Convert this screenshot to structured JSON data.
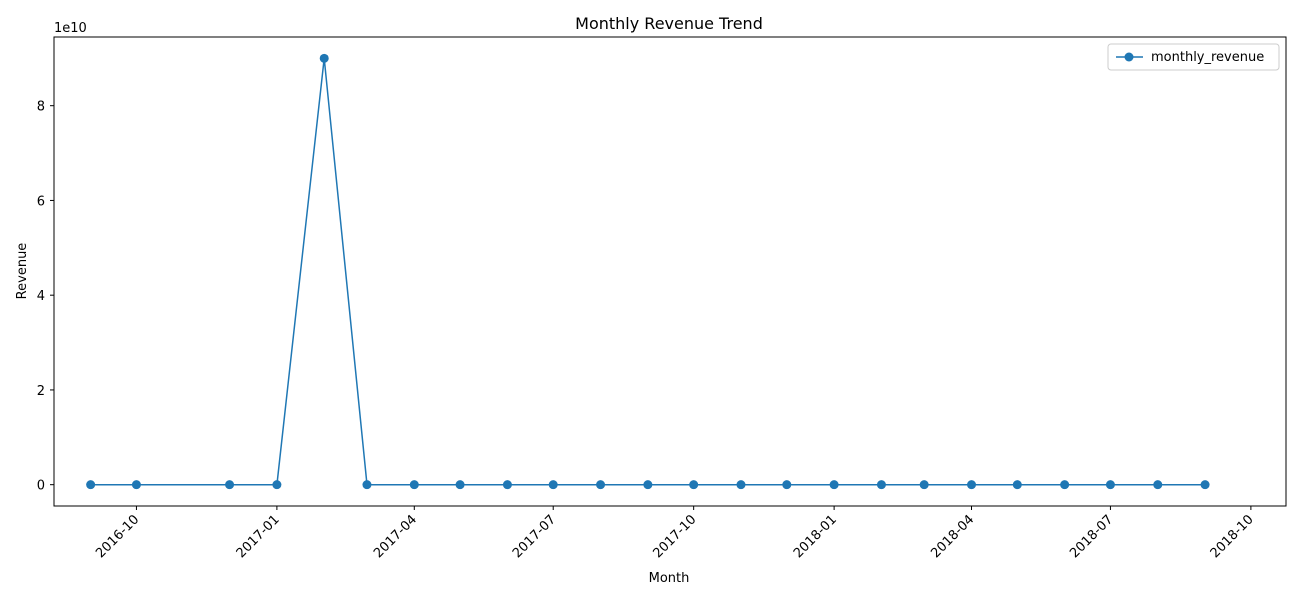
{
  "chart_data": {
    "type": "line",
    "title": "Monthly Revenue Trend",
    "xlabel": "Month",
    "ylabel": "Revenue",
    "y_offset_label": "1e10",
    "x": [
      "2016-09-01",
      "2016-10-01",
      "2016-12-01",
      "2017-01-01",
      "2017-02-01",
      "2017-03-01",
      "2017-04-01",
      "2017-05-01",
      "2017-06-01",
      "2017-07-01",
      "2017-08-01",
      "2017-09-01",
      "2017-10-01",
      "2017-11-01",
      "2017-12-01",
      "2018-01-01",
      "2018-02-01",
      "2018-03-01",
      "2018-04-01",
      "2018-05-01",
      "2018-06-01",
      "2018-07-01",
      "2018-08-01",
      "2018-09-01"
    ],
    "series": [
      {
        "name": "monthly_revenue",
        "color": "#1f77b4",
        "marker": "circle",
        "values": [
          0,
          0,
          0,
          0,
          90000000000.0,
          0,
          0,
          0,
          0,
          0,
          0,
          0,
          0,
          0,
          0,
          0,
          0,
          0,
          0,
          0,
          0,
          0,
          0,
          0
        ]
      }
    ],
    "xlim": [
      "2016-08-08",
      "2018-10-24"
    ],
    "ylim": [
      -4500000000.0,
      94500000000.0
    ],
    "x_ticks": [
      "2016-10-01",
      "2017-01-01",
      "2017-04-01",
      "2017-07-01",
      "2017-10-01",
      "2018-01-01",
      "2018-04-01",
      "2018-07-01",
      "2018-10-01"
    ],
    "x_tick_labels": [
      "2016-10",
      "2017-01",
      "2017-04",
      "2017-07",
      "2017-10",
      "2018-01",
      "2018-04",
      "2018-07",
      "2018-10"
    ],
    "y_ticks": [
      0,
      20000000000.0,
      40000000000.0,
      60000000000.0,
      80000000000.0
    ],
    "y_tick_labels": [
      "0",
      "2",
      "4",
      "6",
      "8"
    ],
    "grid": false,
    "legend_position": "top-right"
  }
}
